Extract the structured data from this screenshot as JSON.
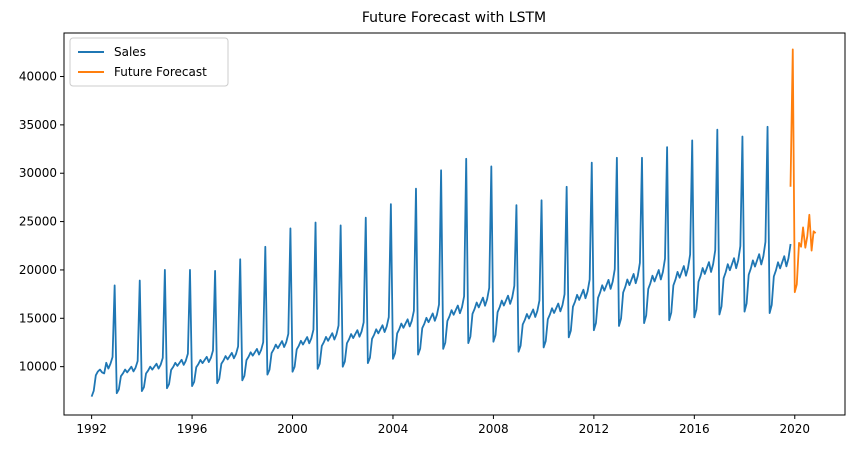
{
  "chart_data": {
    "type": "line",
    "title": "Future Forecast with LSTM",
    "xlabel": "",
    "ylabel": "",
    "xlim": [
      1990.9,
      2022.0
    ],
    "ylim": [
      5000,
      44500
    ],
    "xticks": [
      1992,
      1996,
      2000,
      2004,
      2008,
      2012,
      2016,
      2020
    ],
    "yticks": [
      10000,
      15000,
      20000,
      25000,
      30000,
      35000,
      40000
    ],
    "grid": false,
    "legend": {
      "placement": "top-left",
      "entries": [
        "Sales",
        "Future Forecast"
      ]
    },
    "colors": {
      "Sales": "#1f77b4",
      "Future Forecast": "#ff7f0e"
    },
    "yearly_profile": {
      "note": "",
      "baselines_by_year": {
        "1992": 9400,
        "1993": 9800,
        "1994": 10100,
        "1995": 10500,
        "1996": 10800,
        "1997": 11200,
        "1998": 11600,
        "1999": 12400,
        "2000": 12800,
        "2001": 13200,
        "2002": 13500,
        "2003": 14000,
        "2004": 14600,
        "2005": 15200,
        "2006": 16000,
        "2007": 16800,
        "2008": 17000,
        "2009": 15600,
        "2010": 16200,
        "2011": 17600,
        "2012": 18600,
        "2013": 19200,
        "2014": 19600,
        "2015": 20000,
        "2016": 20400,
        "2017": 20800,
        "2018": 21200,
        "2019": 21000
      },
      "december_peaks_by_year": {
        "1992": 18400,
        "1993": 18900,
        "1994": 20000,
        "1995": 20000,
        "1996": 19900,
        "1997": 21100,
        "1998": 22400,
        "1999": 24300,
        "2000": 24900,
        "2001": 24600,
        "2002": 25400,
        "2003": 26800,
        "2004": 28400,
        "2005": 30300,
        "2006": 31500,
        "2007": 30700,
        "2008": 26700,
        "2009": 27200,
        "2010": 28600,
        "2011": 31100,
        "2012": 31600,
        "2013": 31600,
        "2014": 32700,
        "2015": 33400,
        "2016": 34500,
        "2017": 33800,
        "2018": 34800
      }
    },
    "series": [
      {
        "name": "Sales",
        "x_start": 1992.0,
        "x_step": 0.08333,
        "values": []
      },
      {
        "name": "Future Forecast",
        "x": [
          2019.83,
          2019.92,
          2020.0,
          2020.08,
          2020.17,
          2020.25,
          2020.33,
          2020.42,
          2020.5,
          2020.58,
          2020.67,
          2020.75,
          2020.83
        ],
        "values": [
          28600,
          42800,
          17700,
          18500,
          22800,
          22400,
          24400,
          22300,
          23500,
          25700,
          22000,
          24000,
          23800
        ]
      }
    ]
  }
}
